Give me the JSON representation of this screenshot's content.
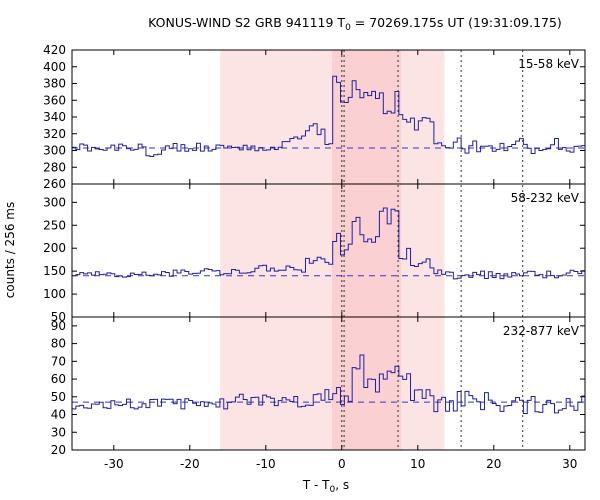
{
  "chart_data": {
    "type": "line",
    "title_prefix": "KONUS-WIND S2 GRB 941119 T",
    "title_sub": "0",
    "title_suffix": " = 70269.175s UT (19:31:09.175)",
    "xlabel_main": "T - T",
    "xlabel_sub": "0",
    "xlabel_unit": ", s",
    "ylabel": "counts / 256 ms",
    "xlim": [
      -35.5,
      32.0
    ],
    "xticks": [
      -30,
      -20,
      -10,
      0,
      10,
      20,
      30
    ],
    "shaded_regions": [
      {
        "from": -16.0,
        "to": 13.5,
        "color": "#fde4e4"
      },
      {
        "from": -1.3,
        "to": 7.8,
        "color": "#fbd0d3"
      }
    ],
    "vertical_markers": {
      "dotted": [
        0.0,
        0.3,
        7.4,
        15.7,
        23.8
      ],
      "dashed": [
        -1.3,
        13.5
      ]
    },
    "panels": [
      {
        "name": "15-58 keV",
        "ylim": [
          260,
          420
        ],
        "yticks": [
          260,
          280,
          300,
          320,
          340,
          360,
          380,
          400,
          420
        ],
        "background": 303,
        "x_start": -35.5,
        "bin_width": 0.512,
        "segments": [
          {
            "until": -26.0,
            "level": 304,
            "noise": 5
          },
          {
            "until": -23.5,
            "level": 296,
            "noise": 4
          },
          {
            "until": -16.5,
            "level": 304,
            "noise": 5
          },
          {
            "until": -8.0,
            "level": 303,
            "noise": 4
          },
          {
            "until": -5.0,
            "level": 315,
            "noise": 6
          },
          {
            "until": -2.0,
            "level": 325,
            "noise": 8
          },
          {
            "until": -1.3,
            "level": 312,
            "noise": 6
          },
          {
            "until": 0.0,
            "level": 380,
            "noise": 14
          },
          {
            "until": 1.0,
            "level": 358,
            "noise": 12
          },
          {
            "until": 3.5,
            "level": 372,
            "noise": 14
          },
          {
            "until": 5.5,
            "level": 376,
            "noise": 15
          },
          {
            "until": 7.4,
            "level": 356,
            "noise": 15
          },
          {
            "until": 9.5,
            "level": 345,
            "noise": 12
          },
          {
            "until": 12.0,
            "level": 330,
            "noise": 10
          },
          {
            "until": 32.0,
            "level": 305,
            "noise": 10
          }
        ]
      },
      {
        "name": "58-232 keV",
        "ylim": [
          50,
          340
        ],
        "yticks": [
          50,
          100,
          150,
          200,
          250,
          300
        ],
        "background": 140,
        "x_start": -35.5,
        "bin_width": 0.512,
        "segments": [
          {
            "until": -22.0,
            "level": 143,
            "noise": 6
          },
          {
            "until": -12.0,
            "level": 150,
            "noise": 8
          },
          {
            "until": -5.0,
            "level": 155,
            "noise": 8
          },
          {
            "until": -1.3,
            "level": 172,
            "noise": 10
          },
          {
            "until": 0.0,
            "level": 225,
            "noise": 20
          },
          {
            "until": 1.2,
            "level": 205,
            "noise": 20
          },
          {
            "until": 2.6,
            "level": 280,
            "noise": 35
          },
          {
            "until": 4.8,
            "level": 218,
            "noise": 12
          },
          {
            "until": 7.4,
            "level": 268,
            "noise": 22
          },
          {
            "until": 9.0,
            "level": 190,
            "noise": 15
          },
          {
            "until": 12.0,
            "level": 165,
            "noise": 12
          },
          {
            "until": 32.0,
            "level": 143,
            "noise": 10
          }
        ]
      },
      {
        "name": "232-877 keV",
        "ylim": [
          20,
          95
        ],
        "yticks": [
          20,
          30,
          40,
          50,
          60,
          70,
          80,
          90
        ],
        "background": 47,
        "x_start": -35.5,
        "bin_width": 0.512,
        "segments": [
          {
            "until": -15.0,
            "level": 46,
            "noise": 3
          },
          {
            "until": -2.0,
            "level": 48,
            "noise": 4
          },
          {
            "until": 0.0,
            "level": 54,
            "noise": 6
          },
          {
            "until": 1.2,
            "level": 50,
            "noise": 8
          },
          {
            "until": 3.5,
            "level": 65,
            "noise": 13
          },
          {
            "until": 5.0,
            "level": 55,
            "noise": 8
          },
          {
            "until": 7.4,
            "level": 68,
            "noise": 12
          },
          {
            "until": 10.0,
            "level": 55,
            "noise": 8
          },
          {
            "until": 32.0,
            "level": 47,
            "noise": 7
          }
        ]
      }
    ],
    "colors": {
      "series": "#1f1f9e",
      "background_line": "#3535c8",
      "axes": "#000000"
    }
  }
}
